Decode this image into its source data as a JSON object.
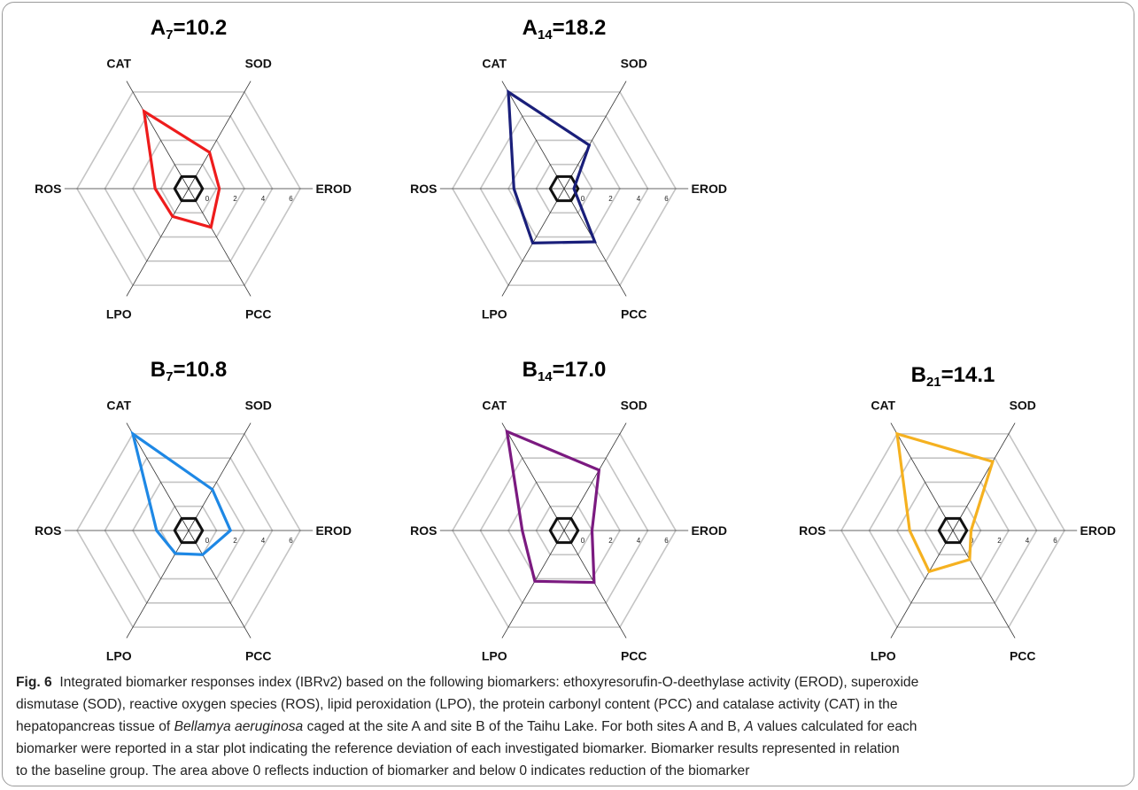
{
  "chart_data": [
    {
      "type": "radar",
      "title": {
        "letter": "A",
        "sub": "7",
        "value": "=10.2"
      },
      "axes": [
        "SOD",
        "EROD",
        "PCC",
        "LPO",
        "ROS",
        "CAT"
      ],
      "ticks": [
        "0",
        "2",
        "4",
        "6"
      ],
      "rlim": [
        -1,
        7
      ],
      "color": "#ee1c1c",
      "values": [
        2.0,
        1.2,
        2.2,
        1.3,
        1.4,
        5.4
      ]
    },
    {
      "type": "radar",
      "title": {
        "letter": "A",
        "sub": "14",
        "value": "=18.2"
      },
      "axes": [
        "SOD",
        "EROD",
        "PCC",
        "LPO",
        "ROS",
        "CAT"
      ],
      "ticks": [
        "0",
        "2",
        "4",
        "6"
      ],
      "rlim": [
        -1,
        7
      ],
      "color": "#1a1f7a",
      "values": [
        2.6,
        -0.3,
        3.4,
        3.5,
        2.6,
        7.0
      ]
    },
    {
      "type": "radar",
      "title": {
        "letter": "B",
        "sub": "7",
        "value": "=10.8"
      },
      "axes": [
        "SOD",
        "EROD",
        "PCC",
        "LPO",
        "ROS",
        "CAT"
      ],
      "ticks": [
        "0",
        "2",
        "4",
        "6"
      ],
      "rlim": [
        -1,
        7
      ],
      "color": "#1e88e5",
      "values": [
        2.4,
        2.0,
        1.0,
        0.9,
        1.3,
        7.0
      ]
    },
    {
      "type": "radar",
      "title": {
        "letter": "B",
        "sub": "14",
        "value": "=17.0"
      },
      "axes": [
        "SOD",
        "EROD",
        "PCC",
        "LPO",
        "ROS",
        "CAT"
      ],
      "ticks": [
        "0",
        "2",
        "4",
        "6"
      ],
      "rlim": [
        -1,
        7
      ],
      "color": "#7b1a80",
      "values": [
        4.0,
        1.0,
        3.3,
        3.2,
        2.0,
        7.2
      ]
    },
    {
      "type": "radar",
      "title": {
        "letter": "B",
        "sub": "21",
        "value": "=14.1"
      },
      "axes": [
        "SOD",
        "EROD",
        "PCC",
        "LPO",
        "ROS",
        "CAT"
      ],
      "ticks": [
        "0",
        "2",
        "4",
        "6"
      ],
      "rlim": [
        -1,
        7
      ],
      "color": "#f5b120",
      "values": [
        4.7,
        0.3,
        1.4,
        2.4,
        2.1,
        7.0
      ]
    }
  ],
  "caption": {
    "fig_label": "Fig. 6",
    "line1": "Integrated biomarker responses index (IBRv2) based on the following biomarkers: ethoxyresorufin-O-deethylase activity (EROD), superoxide",
    "line2": "dismutase (SOD), reactive oxygen species (ROS), lipid peroxidation (LPO), the protein carbonyl content (PCC) and catalase activity (CAT) in the",
    "line3_pre": "hepatopancreas tissue of ",
    "line3_species": "Bellamya aeruginosa",
    "line3_post": " caged at the site A and site B of the Taihu Lake. For both sites A and B, ",
    "line3_A": "A",
    "line3_end": " values calculated for each",
    "line4": "biomarker were reported in a star plot indicating the reference deviation of each investigated biomarker. Biomarker results represented in relation",
    "line5": "to the baseline group. The area above 0 reflects induction of biomarker and below 0 indicates reduction of the biomarker"
  }
}
